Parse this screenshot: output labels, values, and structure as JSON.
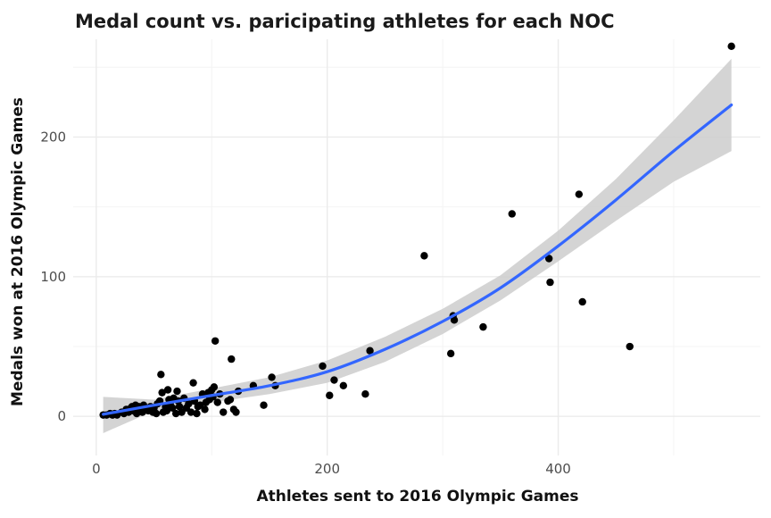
{
  "colors": {
    "background": "#ffffff",
    "grid_major": "#ebebeb",
    "grid_minor": "#f4f4f4",
    "points": "#000000",
    "trend_line": "#3366ff",
    "confidence_band": "#cccccc",
    "text": "#1a1a1a",
    "tick_text": "#4d4d4d"
  },
  "chart_data": {
    "type": "scatter",
    "title": "Medal count vs. paricipating athletes for each NOC",
    "xlabel": "Athletes sent to 2016 Olympic Games",
    "ylabel": "Medals won at 2016 Olympic Games",
    "xlim": [
      -20,
      575
    ],
    "ylim": [
      -28,
      270
    ],
    "x_ticks": [
      0,
      200,
      400
    ],
    "x_tick_labels": [
      "0",
      "200",
      "400"
    ],
    "y_ticks": [
      0,
      100,
      200
    ],
    "y_tick_labels": [
      "0",
      "100",
      "200"
    ],
    "grid": true,
    "legend": "none",
    "points": [
      [
        6,
        1
      ],
      [
        9,
        1
      ],
      [
        12,
        2
      ],
      [
        14,
        1
      ],
      [
        16,
        2
      ],
      [
        18,
        1
      ],
      [
        22,
        3
      ],
      [
        24,
        2
      ],
      [
        26,
        5
      ],
      [
        28,
        3
      ],
      [
        30,
        6
      ],
      [
        31,
        7
      ],
      [
        32,
        4
      ],
      [
        34,
        8
      ],
      [
        35,
        2
      ],
      [
        37,
        7
      ],
      [
        38,
        5
      ],
      [
        40,
        3
      ],
      [
        41,
        8
      ],
      [
        43,
        6
      ],
      [
        45,
        4
      ],
      [
        47,
        7
      ],
      [
        49,
        3
      ],
      [
        50,
        6
      ],
      [
        52,
        2
      ],
      [
        53,
        9
      ],
      [
        55,
        11
      ],
      [
        56,
        30
      ],
      [
        57,
        17
      ],
      [
        58,
        3
      ],
      [
        60,
        7
      ],
      [
        61,
        4
      ],
      [
        62,
        19
      ],
      [
        63,
        12
      ],
      [
        64,
        9
      ],
      [
        66,
        6
      ],
      [
        67,
        13
      ],
      [
        69,
        2
      ],
      [
        70,
        18
      ],
      [
        71,
        11
      ],
      [
        72,
        7
      ],
      [
        74,
        3
      ],
      [
        76,
        13
      ],
      [
        78,
        6
      ],
      [
        80,
        9
      ],
      [
        82,
        3
      ],
      [
        84,
        24
      ],
      [
        85,
        11
      ],
      [
        87,
        2
      ],
      [
        88,
        7
      ],
      [
        90,
        8
      ],
      [
        92,
        16
      ],
      [
        94,
        5
      ],
      [
        95,
        10
      ],
      [
        97,
        17
      ],
      [
        98,
        12
      ],
      [
        100,
        19
      ],
      [
        101,
        14
      ],
      [
        102,
        21
      ],
      [
        103,
        54
      ],
      [
        105,
        10
      ],
      [
        107,
        16
      ],
      [
        110,
        3
      ],
      [
        114,
        11
      ],
      [
        116,
        12
      ],
      [
        117,
        41
      ],
      [
        119,
        5
      ],
      [
        121,
        3
      ],
      [
        123,
        18
      ],
      [
        136,
        22
      ],
      [
        145,
        8
      ],
      [
        152,
        28
      ],
      [
        155,
        22
      ],
      [
        196,
        36
      ],
      [
        202,
        15
      ],
      [
        206,
        26
      ],
      [
        214,
        22
      ],
      [
        233,
        16
      ],
      [
        237,
        47
      ],
      [
        284,
        115
      ],
      [
        307,
        45
      ],
      [
        309,
        72
      ],
      [
        310,
        69
      ],
      [
        335,
        64
      ],
      [
        360,
        145
      ],
      [
        392,
        113
      ],
      [
        393,
        96
      ],
      [
        418,
        159
      ],
      [
        421,
        82
      ],
      [
        462,
        50
      ],
      [
        550,
        265
      ]
    ],
    "trend_line": [
      [
        6,
        1.5
      ],
      [
        50,
        8
      ],
      [
        100,
        15
      ],
      [
        150,
        22
      ],
      [
        200,
        32
      ],
      [
        250,
        48
      ],
      [
        300,
        68
      ],
      [
        350,
        92
      ],
      [
        400,
        122
      ],
      [
        450,
        155
      ],
      [
        500,
        190
      ],
      [
        550,
        223
      ]
    ],
    "confidence_band": [
      [
        6,
        -12,
        14
      ],
      [
        50,
        4,
        12
      ],
      [
        100,
        10,
        20
      ],
      [
        150,
        16,
        28
      ],
      [
        200,
        24,
        40
      ],
      [
        250,
        39,
        57
      ],
      [
        300,
        59,
        77
      ],
      [
        350,
        83,
        101
      ],
      [
        400,
        111,
        133
      ],
      [
        450,
        140,
        170
      ],
      [
        500,
        168,
        212
      ],
      [
        550,
        190,
        256
      ]
    ]
  }
}
